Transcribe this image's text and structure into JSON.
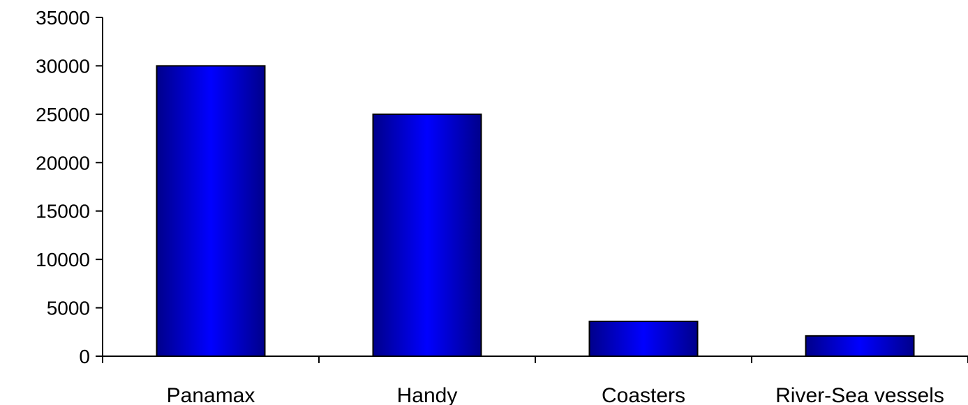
{
  "chart_data": {
    "type": "bar",
    "title": "",
    "xlabel": "",
    "ylabel": "",
    "categories": [
      "Panamax",
      "Handy",
      "Coasters",
      "River-Sea vessels"
    ],
    "values": [
      30000,
      25000,
      3600,
      2100
    ],
    "ylim": [
      0,
      35000
    ],
    "yticks": [
      "0",
      "5000",
      "10000",
      "15000",
      "20000",
      "25000",
      "30000",
      "35000"
    ],
    "grid": false,
    "legend": "none",
    "bar_color": "#0000ff",
    "bar_shade_color": "#00008b"
  }
}
